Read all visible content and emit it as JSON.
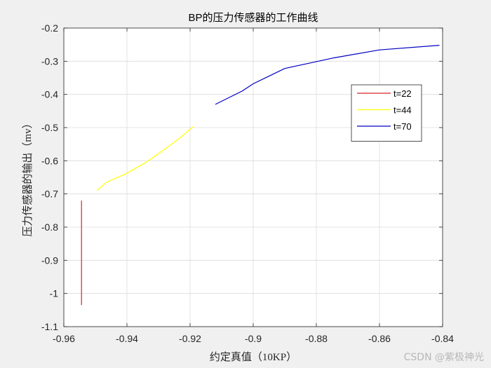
{
  "chart_data": {
    "type": "line",
    "title": "BP的压力传感器的工作曲线",
    "xlabel": "约定真值（10KP）",
    "ylabel": "压力传感器的输出（mv）",
    "xlim": [
      -0.96,
      -0.84
    ],
    "ylim": [
      -1.1,
      -0.2
    ],
    "xticks": [
      -0.96,
      -0.94,
      -0.92,
      -0.9,
      -0.88,
      -0.86,
      -0.84
    ],
    "yticks": [
      -0.2,
      -0.3,
      -0.4,
      -0.5,
      -0.6,
      -0.7,
      -0.8,
      -0.9,
      -1,
      -1.1
    ],
    "xtick_labels": [
      "-0.96",
      "-0.94",
      "-0.92",
      "-0.9",
      "-0.88",
      "-0.86",
      "-0.84"
    ],
    "ytick_labels": [
      "-0.2",
      "-0.3",
      "-0.4",
      "-0.5",
      "-0.6",
      "-0.7",
      "-0.8",
      "-0.9",
      "-1",
      "-1.1"
    ],
    "grid": true,
    "legend_position": "upper-right",
    "series": [
      {
        "name": "t=22",
        "color": "#d62728",
        "points": [
          [
            -0.9544,
            -0.72
          ],
          [
            -0.9544,
            -1.035
          ]
        ]
      },
      {
        "name": "t=44",
        "color": "#ffff00",
        "points": [
          [
            -0.9495,
            -0.69
          ],
          [
            -0.9465,
            -0.665
          ],
          [
            -0.9405,
            -0.64
          ],
          [
            -0.934,
            -0.605
          ],
          [
            -0.928,
            -0.565
          ],
          [
            -0.9228,
            -0.528
          ],
          [
            -0.919,
            -0.497
          ]
        ]
      },
      {
        "name": "t=70",
        "color": "#0000c0",
        "points": [
          [
            -0.912,
            -0.43
          ],
          [
            -0.9035,
            -0.39
          ],
          [
            -0.9,
            -0.368
          ],
          [
            -0.89,
            -0.322
          ],
          [
            -0.8745,
            -0.29
          ],
          [
            -0.86,
            -0.266
          ],
          [
            -0.841,
            -0.252
          ]
        ]
      }
    ]
  },
  "watermark": "CSDN @紫极神光"
}
